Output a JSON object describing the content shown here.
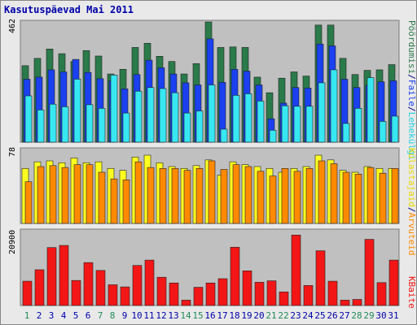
{
  "title": "Kasutuspäevad Mai 2011",
  "colors": {
    "page": "#e9e9e9",
    "panel": "#c0c0c0",
    "visits": "#2a7a4a",
    "pages": "#1a40f0",
    "hits": "#37e7f2",
    "visitors_orange": "#ff8a00",
    "unique_yellow": "#ffff20",
    "bytes": "#f21616",
    "weekend": "#208a5a",
    "text": "#0000aa"
  },
  "chart_data": [
    {
      "type": "bar",
      "panel": "top",
      "ymax_label": "462",
      "ylim": [
        0,
        462
      ],
      "categories": [
        "1",
        "2",
        "3",
        "4",
        "5",
        "6",
        "7",
        "8",
        "9",
        "10",
        "11",
        "12",
        "13",
        "14",
        "15",
        "16",
        "17",
        "18",
        "19",
        "20",
        "21",
        "22",
        "23",
        "24",
        "25",
        "26",
        "27",
        "28",
        "29",
        "30",
        "31"
      ],
      "weekend_days": [
        "1",
        "7",
        "8",
        "14",
        "15",
        "21",
        "22",
        "28",
        "29"
      ],
      "legend": [
        "Pöördumisi",
        "Faile",
        "Lehekülgi"
      ],
      "series": [
        {
          "name": "Pöördumisi",
          "values": [
            294,
            322,
            358,
            340,
            310,
            352,
            331,
            262,
            280,
            364,
            380,
            330,
            310,
            262,
            302,
            462,
            364,
            366,
            364,
            250,
            190,
            246,
            270,
            254,
            450,
            450,
            322,
            260,
            276,
            278,
            298
          ]
        },
        {
          "name": "Faile",
          "values": [
            242,
            250,
            278,
            270,
            318,
            268,
            244,
            236,
            205,
            260,
            315,
            286,
            262,
            228,
            220,
            397,
            230,
            280,
            273,
            220,
            90,
            150,
            210,
            208,
            377,
            370,
            242,
            210,
            218,
            232,
            236
          ]
        },
        {
          "name": "Lehekülgi",
          "values": [
            178,
            124,
            146,
            136,
            242,
            144,
            130,
            258,
            112,
            196,
            210,
            206,
            190,
            112,
            120,
            220,
            50,
            180,
            186,
            158,
            46,
            140,
            138,
            138,
            228,
            278,
            72,
            130,
            248,
            80,
            100
          ]
        }
      ]
    },
    {
      "type": "bar",
      "panel": "middle",
      "ymax_label": "78",
      "ylim": [
        0,
        78
      ],
      "legend": [
        "Külastajaid",
        "Arvuteid"
      ],
      "series": [
        {
          "name": "Külastajaid",
          "values": [
            58,
            65,
            66,
            64,
            69,
            64,
            65,
            58,
            56,
            70,
            72,
            64,
            60,
            58,
            61,
            67,
            51,
            65,
            62,
            60,
            58,
            54,
            58,
            60,
            72,
            67,
            56,
            54,
            60,
            58,
            58
          ]
        },
        {
          "name": "Arvuteid",
          "values": [
            44,
            60,
            61,
            59,
            62,
            62,
            54,
            47,
            46,
            65,
            59,
            58,
            58,
            56,
            58,
            66,
            57,
            62,
            60,
            55,
            50,
            58,
            55,
            58,
            66,
            63,
            54,
            52,
            59,
            53,
            58
          ]
        }
      ]
    },
    {
      "type": "bar",
      "panel": "bottom",
      "ymax_label": "20900",
      "ylim": [
        0,
        20900
      ],
      "legend": [
        "KBaite"
      ],
      "series": [
        {
          "name": "KBaite",
          "values": [
            6800,
            10000,
            16200,
            16800,
            7000,
            12000,
            9800,
            5800,
            5200,
            11200,
            12700,
            7900,
            6300,
            1500,
            5100,
            6300,
            7500,
            16300,
            9700,
            6500,
            6900,
            3800,
            19700,
            5600,
            15300,
            6800,
            1500,
            1700,
            18500,
            6400,
            12700
          ]
        }
      ]
    }
  ]
}
